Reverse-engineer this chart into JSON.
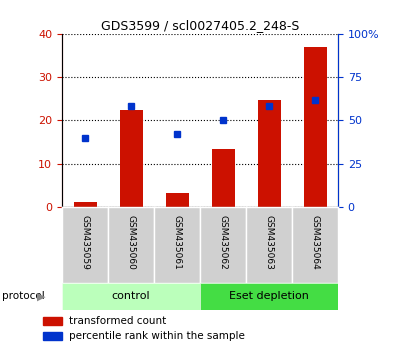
{
  "title": "GDS3599 / scl0027405.2_248-S",
  "categories": [
    "GSM435059",
    "GSM435060",
    "GSM435061",
    "GSM435062",
    "GSM435063",
    "GSM435064"
  ],
  "red_values": [
    1.2,
    22.3,
    3.2,
    13.5,
    24.8,
    37.0
  ],
  "blue_values": [
    40,
    58,
    42,
    50,
    58,
    62
  ],
  "left_ylim": [
    0,
    40
  ],
  "right_ylim": [
    0,
    100
  ],
  "left_yticks": [
    0,
    10,
    20,
    30,
    40
  ],
  "right_yticks": [
    0,
    25,
    50,
    75,
    100
  ],
  "right_yticklabels": [
    "0",
    "25",
    "50",
    "75",
    "100%"
  ],
  "red_color": "#cc1100",
  "blue_color": "#0033cc",
  "bar_width": 0.5,
  "ctrl_color": "#bbffbb",
  "eset_color": "#44dd44",
  "protocol_label": "protocol",
  "legend_red": "transformed count",
  "legend_blue": "percentile rank within the sample",
  "tick_label_color_left": "#cc1100",
  "tick_label_color_right": "#0033cc",
  "plot_bg_color": "#ffffff",
  "outer_bg_color": "#ffffff"
}
